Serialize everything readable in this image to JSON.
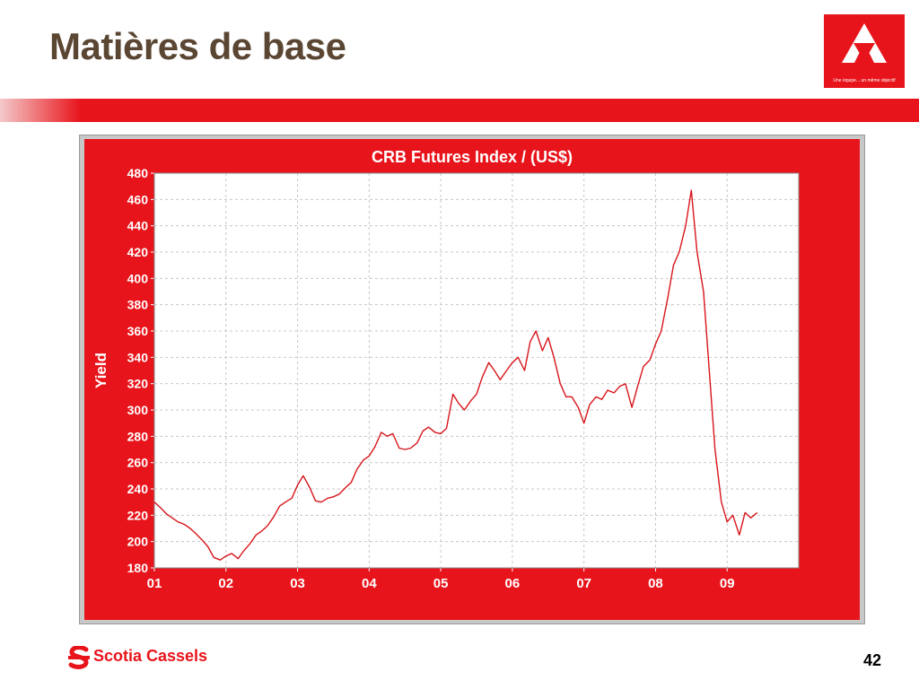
{
  "slide": {
    "title": "Matières de base",
    "logo_tagline": "Une équipe... un même objectif",
    "footer_brand": "Scotia Cassels",
    "page_number": "42"
  },
  "colors": {
    "brand_red": "#e8141b",
    "title_brown": "#5a4632",
    "series_red": "#d8141a",
    "plot_bg": "#ffffff",
    "grid": "#c8c8c8"
  },
  "icons": {
    "corner_logo": "triangle-logo-icon",
    "footer_logo": "scotia-s-logo-icon"
  },
  "chart_data": {
    "type": "line",
    "title": "CRB Futures Index / (US$)",
    "xlabel": "",
    "ylabel": "Yield",
    "categories": [
      "01",
      "02",
      "03",
      "04",
      "05",
      "06",
      "07",
      "08",
      "09"
    ],
    "ylim": [
      180,
      480
    ],
    "yticks": [
      180,
      200,
      220,
      240,
      260,
      280,
      300,
      320,
      340,
      360,
      380,
      400,
      420,
      440,
      460,
      480
    ],
    "xlim": [
      2001.0,
      2010.0
    ],
    "grid": true,
    "legend": "none",
    "series": [
      {
        "name": "",
        "points": [
          [
            2001.0,
            230
          ],
          [
            2001.08,
            226
          ],
          [
            2001.17,
            221
          ],
          [
            2001.25,
            218
          ],
          [
            2001.33,
            215
          ],
          [
            2001.42,
            213
          ],
          [
            2001.5,
            210
          ],
          [
            2001.58,
            206
          ],
          [
            2001.67,
            201
          ],
          [
            2001.75,
            196
          ],
          [
            2001.83,
            188
          ],
          [
            2001.92,
            186
          ],
          [
            2002.0,
            189
          ],
          [
            2002.08,
            191
          ],
          [
            2002.17,
            187
          ],
          [
            2002.25,
            193
          ],
          [
            2002.33,
            198
          ],
          [
            2002.42,
            205
          ],
          [
            2002.5,
            208
          ],
          [
            2002.58,
            212
          ],
          [
            2002.67,
            219
          ],
          [
            2002.75,
            227
          ],
          [
            2002.83,
            230
          ],
          [
            2002.92,
            233
          ],
          [
            2003.0,
            243
          ],
          [
            2003.08,
            250
          ],
          [
            2003.17,
            241
          ],
          [
            2003.25,
            231
          ],
          [
            2003.33,
            230
          ],
          [
            2003.42,
            233
          ],
          [
            2003.5,
            234
          ],
          [
            2003.58,
            236
          ],
          [
            2003.67,
            241
          ],
          [
            2003.75,
            245
          ],
          [
            2003.83,
            255
          ],
          [
            2003.92,
            262
          ],
          [
            2004.0,
            265
          ],
          [
            2004.08,
            272
          ],
          [
            2004.17,
            283
          ],
          [
            2004.25,
            280
          ],
          [
            2004.33,
            282
          ],
          [
            2004.42,
            271
          ],
          [
            2004.5,
            270
          ],
          [
            2004.58,
            271
          ],
          [
            2004.67,
            275
          ],
          [
            2004.75,
            284
          ],
          [
            2004.83,
            287
          ],
          [
            2004.92,
            283
          ],
          [
            2005.0,
            282
          ],
          [
            2005.08,
            286
          ],
          [
            2005.17,
            312
          ],
          [
            2005.25,
            305
          ],
          [
            2005.33,
            300
          ],
          [
            2005.42,
            307
          ],
          [
            2005.5,
            312
          ],
          [
            2005.58,
            325
          ],
          [
            2005.67,
            336
          ],
          [
            2005.75,
            330
          ],
          [
            2005.83,
            323
          ],
          [
            2005.92,
            330
          ],
          [
            2006.0,
            336
          ],
          [
            2006.08,
            340
          ],
          [
            2006.17,
            330
          ],
          [
            2006.25,
            352
          ],
          [
            2006.33,
            360
          ],
          [
            2006.42,
            345
          ],
          [
            2006.5,
            355
          ],
          [
            2006.58,
            340
          ],
          [
            2006.67,
            320
          ],
          [
            2006.75,
            310
          ],
          [
            2006.83,
            310
          ],
          [
            2006.92,
            302
          ],
          [
            2007.0,
            290
          ],
          [
            2007.08,
            304
          ],
          [
            2007.17,
            310
          ],
          [
            2007.25,
            308
          ],
          [
            2007.33,
            315
          ],
          [
            2007.42,
            313
          ],
          [
            2007.5,
            318
          ],
          [
            2007.58,
            320
          ],
          [
            2007.67,
            302
          ],
          [
            2007.75,
            318
          ],
          [
            2007.83,
            333
          ],
          [
            2007.92,
            338
          ],
          [
            2008.0,
            350
          ],
          [
            2008.08,
            360
          ],
          [
            2008.17,
            385
          ],
          [
            2008.25,
            410
          ],
          [
            2008.33,
            420
          ],
          [
            2008.42,
            440
          ],
          [
            2008.5,
            467
          ],
          [
            2008.58,
            420
          ],
          [
            2008.67,
            390
          ],
          [
            2008.75,
            330
          ],
          [
            2008.83,
            270
          ],
          [
            2008.92,
            230
          ],
          [
            2009.0,
            215
          ],
          [
            2009.08,
            220
          ],
          [
            2009.17,
            205
          ],
          [
            2009.25,
            222
          ],
          [
            2009.33,
            218
          ],
          [
            2009.42,
            222
          ]
        ]
      }
    ]
  }
}
